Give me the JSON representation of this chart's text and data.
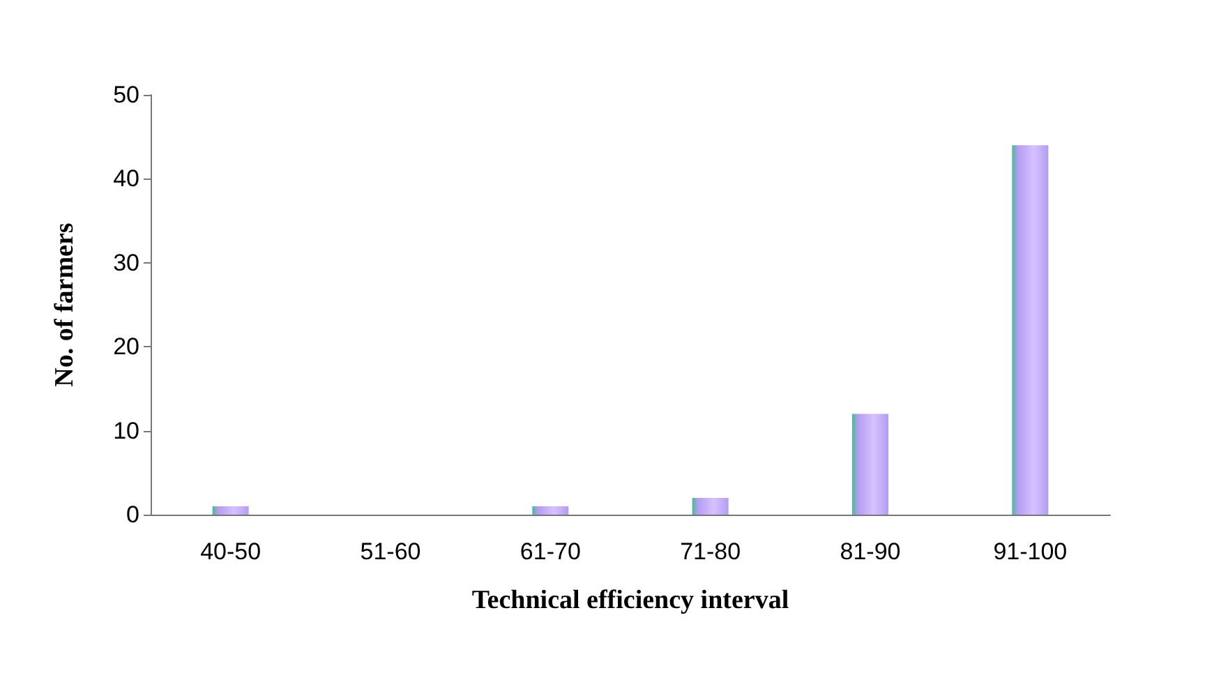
{
  "chart_data": {
    "type": "bar",
    "xlabel": "Technical efficiency interval",
    "ylabel": "No. of farmers",
    "categories": [
      "40-50",
      "51-60",
      "61-70",
      "71-80",
      "81-90",
      "91-100"
    ],
    "values": [
      1,
      0,
      1,
      2,
      12,
      44
    ],
    "color": "#b39cf2",
    "ylim": [
      0,
      50
    ],
    "yticks": [
      0,
      10,
      20,
      30,
      40,
      50
    ],
    "grid": false
  }
}
